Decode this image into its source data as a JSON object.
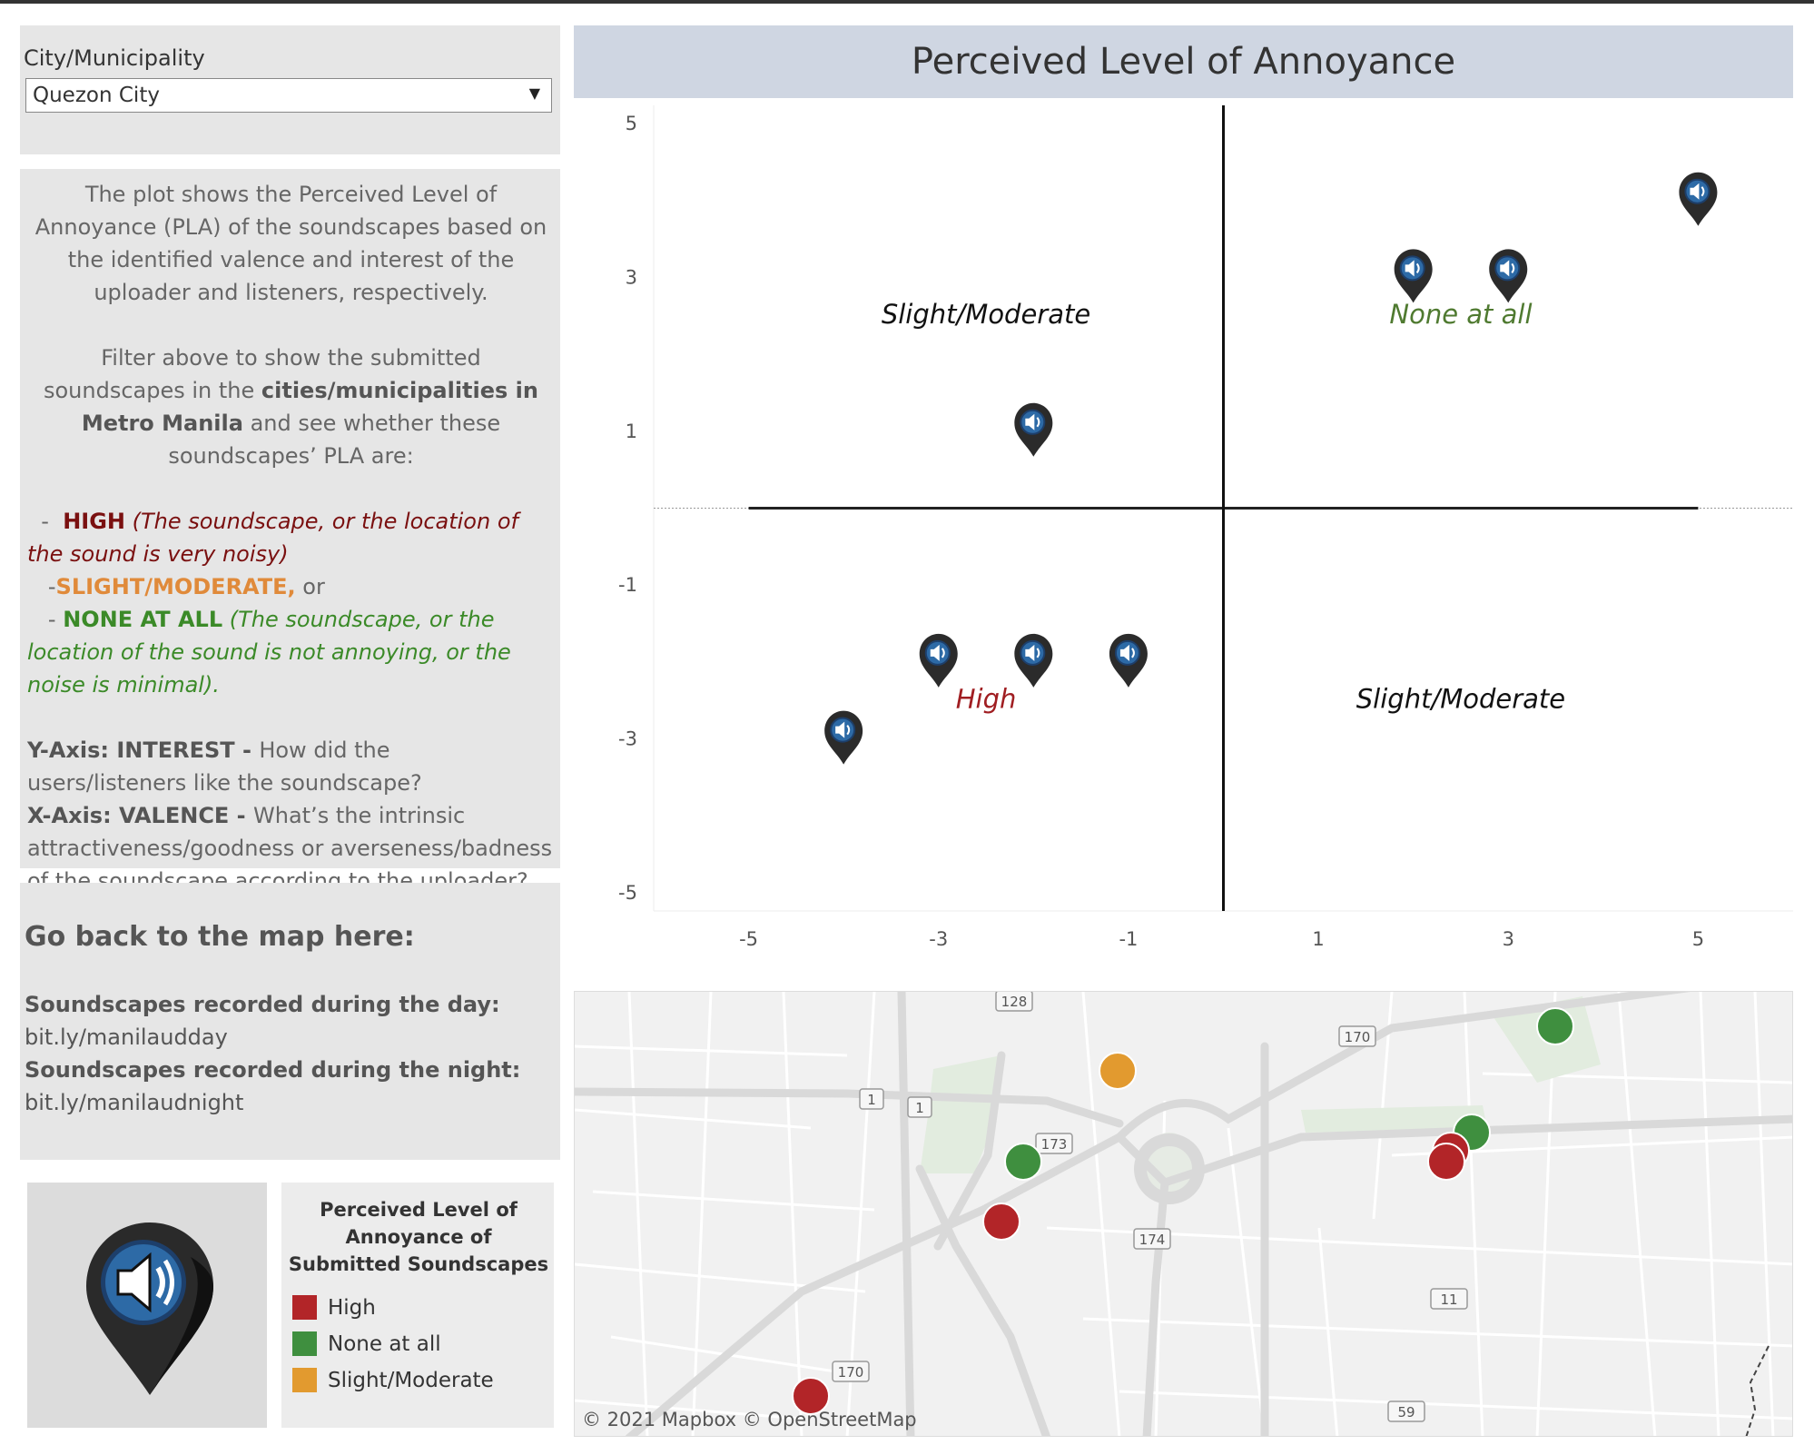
{
  "filter": {
    "label": "City/Municipality",
    "selected": "Quezon City"
  },
  "description": {
    "intro": "The plot shows the Perceived Level of Annoyance (PLA) of the soundscapes based on the identified valence and interest of the uploader and listeners, respectively.",
    "filter_pre": "Filter above to show the submitted soundscapes in the ",
    "filter_bold": "cities/municipalities in Metro Manila",
    "filter_post": " and see whether these soundscapes’ PLA are:",
    "high_label": "HIGH",
    "high_desc": "(The soundscape, or the location of the sound is very noisy)",
    "slight_label": "SLIGHT/MODERATE,",
    "slight_post": " or",
    "none_label": "NONE AT ALL",
    "none_desc": "(The soundscape, or the location of the sound is not annoying, or the noise is minimal).",
    "y_label": "Y-Axis: INTEREST - ",
    "y_desc": "How did the users/listeners like the soundscape?",
    "x_label": "X-Axis: VALENCE - ",
    "x_desc": "What’s the intrinsic attractiveness/goodness or averseness/badness of the soundscape according to the uploader?"
  },
  "links": {
    "heading": "Go back to the map here:",
    "day_label": "Soundscapes recorded during the day:",
    "day_link": "bit.ly/manilaudday",
    "night_label": "Soundscapes recorded during the night:",
    "night_link": "bit.ly/manilaudnight"
  },
  "legend": {
    "title": "Perceived Level of Annoyance of Submitted Soundscapes",
    "items": [
      {
        "label": "High",
        "color": "#b22528"
      },
      {
        "label": "None at all",
        "color": "#3f8f3f"
      },
      {
        "label": "Slight/Moderate",
        "color": "#e29a2f"
      }
    ]
  },
  "chart_data": {
    "type": "scatter",
    "title": "Perceived Level of Annoyance",
    "xlabel": "",
    "ylabel": "",
    "xlim": [
      -6,
      6
    ],
    "ylim": [
      -5,
      5
    ],
    "x_ticks": [
      -5,
      -3,
      -1,
      1,
      3,
      5
    ],
    "y_ticks": [
      5,
      3,
      1,
      -1,
      -3,
      -5
    ],
    "points": [
      {
        "x": 5,
        "y": 4
      },
      {
        "x": 2,
        "y": 3
      },
      {
        "x": 3,
        "y": 3
      },
      {
        "x": -2,
        "y": 1
      },
      {
        "x": -3,
        "y": -2
      },
      {
        "x": -2,
        "y": -2
      },
      {
        "x": -1,
        "y": -2
      },
      {
        "x": -4,
        "y": -3
      }
    ],
    "quadrant_labels": [
      {
        "text": "Slight/Moderate",
        "x": -2.5,
        "y": 2.4,
        "color": "#111111"
      },
      {
        "text": "None at all",
        "x": 2.5,
        "y": 2.4,
        "color": "#4f7a30"
      },
      {
        "text": "High",
        "x": -2.5,
        "y": -2.6,
        "color": "#a01e22"
      },
      {
        "text": "Slight/Moderate",
        "x": 2.5,
        "y": -2.6,
        "color": "#111111"
      }
    ],
    "marker_icon": "speaker-pin-icon"
  },
  "map": {
    "attribution": "© 2021 Mapbox © OpenStreetMap",
    "road_shields": [
      "128",
      "170",
      "1",
      "1",
      "173",
      "174",
      "11",
      "170",
      "59"
    ],
    "markers": [
      {
        "category": "None at all",
        "color": "#3f8f3f"
      },
      {
        "category": "Slight/Moderate",
        "color": "#e29a2f"
      },
      {
        "category": "None at all",
        "color": "#3f8f3f"
      },
      {
        "category": "None at all",
        "color": "#3f8f3f"
      },
      {
        "category": "High",
        "color": "#b22528"
      },
      {
        "category": "High",
        "color": "#b22528"
      },
      {
        "category": "High",
        "color": "#b22528"
      }
    ]
  }
}
